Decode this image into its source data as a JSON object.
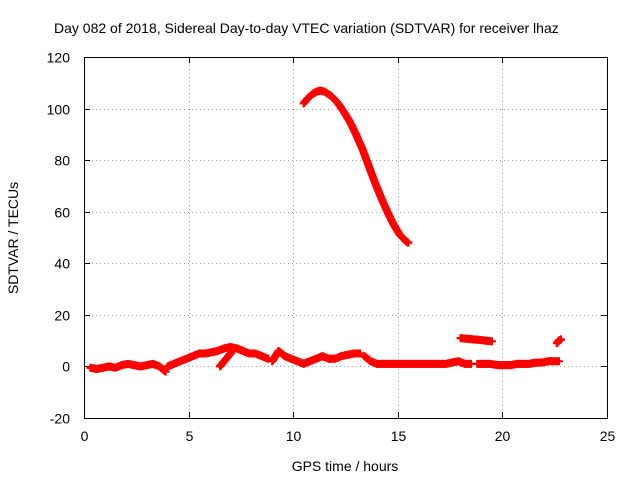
{
  "chart_data": {
    "type": "scatter",
    "title": "Day 082 of 2018, Sidereal Day-to-day VTEC variation (SDTVAR) for receiver lhaz",
    "xlabel": "GPS time / hours",
    "ylabel": "SDTVAR / TECUs",
    "xlim": [
      0,
      25
    ],
    "ylim": [
      -20,
      120
    ],
    "xticks": [
      0,
      5,
      10,
      15,
      20,
      25
    ],
    "yticks": [
      -20,
      0,
      20,
      40,
      60,
      80,
      100,
      120
    ],
    "xtick_labels": [
      "0",
      "5",
      "10",
      "15",
      "20",
      "25"
    ],
    "ytick_labels": [
      "-20",
      "0",
      "20",
      "40",
      "60",
      "80",
      "100",
      "120"
    ],
    "grid": true,
    "marker": "plus",
    "color": "#ff0000",
    "series": [
      {
        "name": "arc-high",
        "x": [
          10.5,
          10.7,
          10.9,
          11.1,
          11.3,
          11.5,
          11.8,
          12.1,
          12.4,
          12.7,
          13.0,
          13.3,
          13.6,
          13.9,
          14.2,
          14.5,
          14.8,
          15.1,
          15.4,
          15.5
        ],
        "y": [
          102,
          104,
          105.5,
          106.5,
          107,
          106.5,
          105,
          102.5,
          99,
          95,
          90,
          84.5,
          78,
          71.5,
          65.5,
          60,
          55,
          51,
          48.5,
          48
        ]
      },
      {
        "name": "base-0-4",
        "x": [
          0.3,
          0.6,
          0.9,
          1.2,
          1.5,
          1.8,
          2.1,
          2.4,
          2.7,
          3.0,
          3.3,
          3.6,
          3.9
        ],
        "y": [
          -0.5,
          -1,
          -0.5,
          0,
          -0.5,
          0.5,
          1,
          0.5,
          0,
          0.5,
          1,
          0,
          -2
        ]
      },
      {
        "name": "base-4-9",
        "x": [
          4.0,
          4.3,
          4.6,
          4.9,
          5.2,
          5.5,
          5.8,
          6.1,
          6.4,
          6.7,
          7.0,
          7.3,
          7.6,
          7.9,
          8.2,
          8.5,
          8.8
        ],
        "y": [
          0,
          1,
          2,
          3,
          4,
          5,
          5,
          5.5,
          6,
          7,
          7.5,
          7,
          6,
          5,
          5,
          4,
          3
        ]
      },
      {
        "name": "arc-6.5",
        "x": [
          6.5,
          6.7,
          6.9,
          7.1
        ],
        "y": [
          0,
          2,
          4,
          6
        ]
      },
      {
        "name": "base-9-13",
        "x": [
          9.0,
          9.3,
          9.6,
          9.9,
          10.2,
          10.5,
          10.8,
          11.1,
          11.4,
          11.7,
          12.0,
          12.3,
          12.6,
          12.9,
          13.2
        ],
        "y": [
          2,
          6,
          4,
          3,
          2,
          1,
          2,
          3,
          4,
          3,
          3,
          4,
          4.5,
          5,
          5
        ]
      },
      {
        "name": "base-13-18.5",
        "x": [
          13.4,
          13.7,
          14.0,
          14.3,
          14.6,
          14.9,
          15.2,
          15.5,
          15.8,
          16.1,
          16.4,
          16.7,
          17.0,
          17.3,
          17.6,
          17.9,
          18.2,
          18.5
        ],
        "y": [
          4,
          2,
          1,
          1,
          1,
          1,
          1,
          1,
          1,
          1,
          1,
          1,
          1,
          1,
          1.5,
          2,
          1,
          1
        ]
      },
      {
        "name": "base-18.5-22.8",
        "x": [
          18.8,
          19.1,
          19.4,
          19.8,
          20.1,
          20.4,
          20.7,
          21.0,
          21.3,
          21.6,
          21.9,
          22.2,
          22.5,
          22.7
        ],
        "y": [
          1,
          1,
          1,
          0.5,
          0.5,
          0.5,
          1,
          1,
          1,
          1.5,
          1.5,
          2,
          2,
          2
        ]
      },
      {
        "name": "arc-18",
        "x": [
          18.0,
          18.3,
          18.6,
          18.9,
          19.2,
          19.5
        ],
        "y": [
          11,
          10.7,
          10.5,
          10.3,
          10,
          9.7
        ]
      },
      {
        "name": "arc-22.7",
        "x": [
          22.6,
          22.7,
          22.8
        ],
        "y": [
          9,
          10,
          10.5
        ]
      }
    ]
  }
}
